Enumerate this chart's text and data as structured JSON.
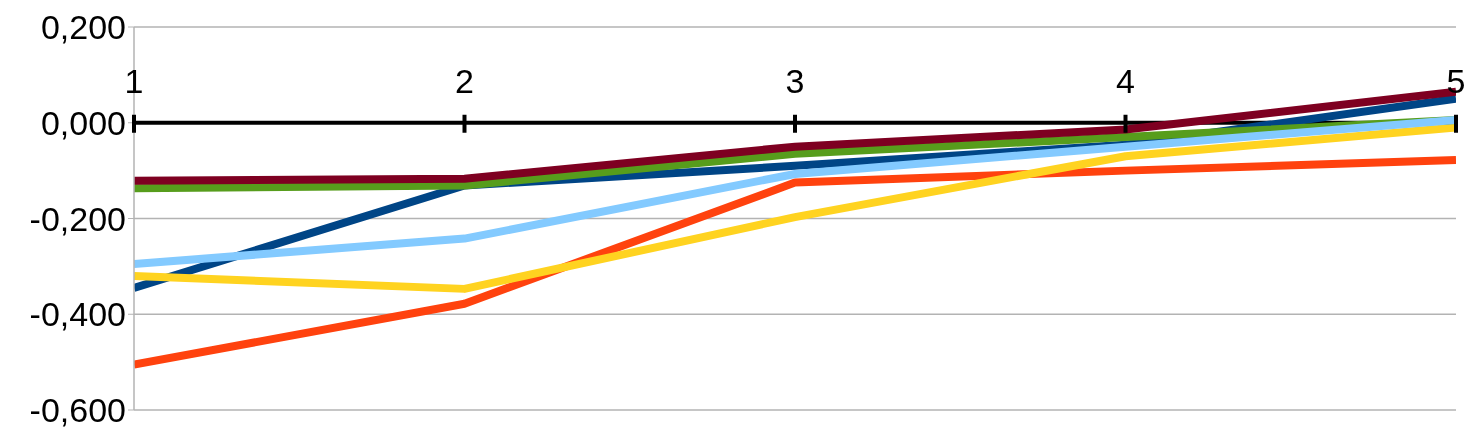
{
  "chart_data": {
    "type": "line",
    "categories": [
      "1",
      "2",
      "3",
      "4",
      "5"
    ],
    "series": [
      {
        "color": "#004586",
        "values": [
          -0.345,
          -0.131,
          -0.09,
          -0.046,
          0.05
        ]
      },
      {
        "color": "#ff420e",
        "values": [
          -0.505,
          -0.378,
          -0.125,
          -0.1,
          -0.078
        ]
      },
      {
        "color": "#ffd320",
        "values": [
          -0.32,
          -0.347,
          -0.197,
          -0.07,
          -0.01
        ]
      },
      {
        "color": "#579d1c",
        "values": [
          -0.137,
          -0.131,
          -0.065,
          -0.03,
          0.006
        ]
      },
      {
        "color": "#83caff",
        "values": [
          -0.295,
          -0.242,
          -0.107,
          -0.05,
          0.006
        ]
      },
      {
        "color": "#7e0021",
        "values": [
          -0.121,
          -0.117,
          -0.05,
          -0.014,
          0.065
        ]
      }
    ],
    "ylim": [
      -0.6,
      0.2
    ],
    "yticks": [
      {
        "value": -0.6,
        "label": "-0,600"
      },
      {
        "value": -0.4,
        "label": "-0,400"
      },
      {
        "value": -0.2,
        "label": "-0,200"
      },
      {
        "value": 0,
        "label": "0,000"
      },
      {
        "value": 0.2,
        "label": "0,200"
      }
    ],
    "grid": "y",
    "marker": "none",
    "line_style": "solid"
  }
}
